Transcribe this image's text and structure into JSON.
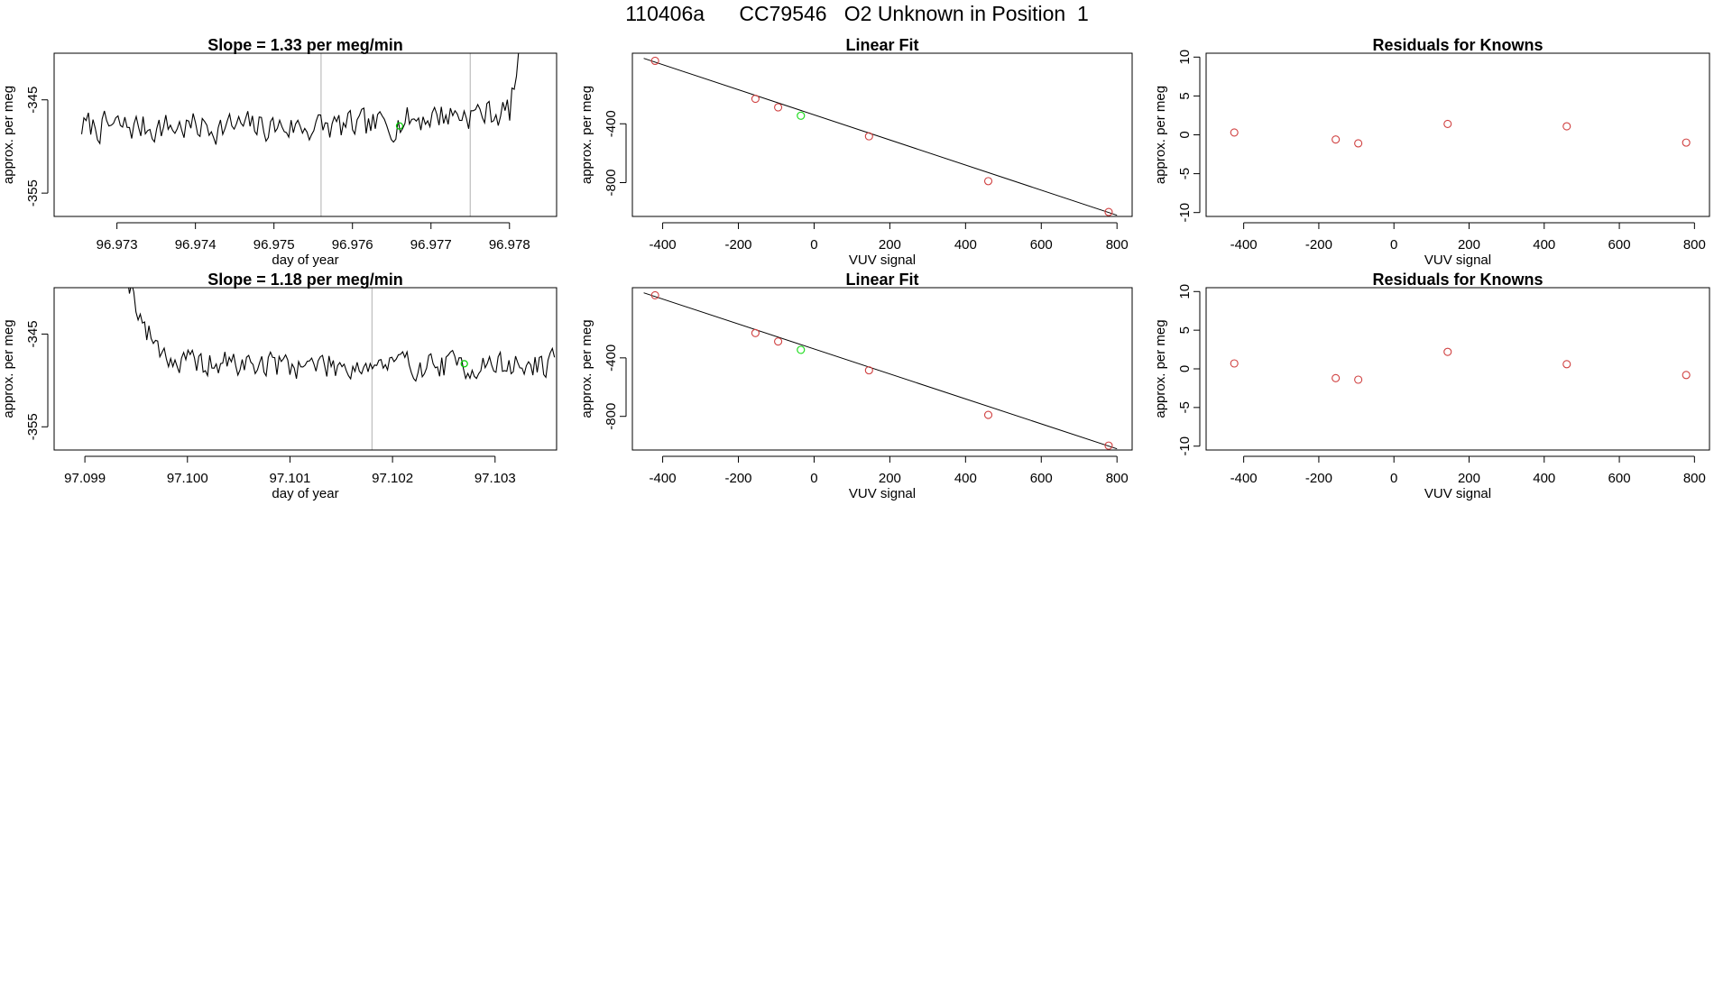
{
  "figure_title": "110406a      CC79546   O2 Unknown in Position  1",
  "chart_data": [
    {
      "id": "ts1",
      "type": "line",
      "title": "Slope =  1.33  per meg/min",
      "xlabel": "day of year",
      "ylabel": "approx. per meg",
      "xlim": [
        96.9722,
        96.9786
      ],
      "ylim": [
        -357.5,
        -340.0
      ],
      "xticks": [
        96.973,
        96.974,
        96.975,
        96.976,
        96.977,
        96.978
      ],
      "xtick_labels": [
        "96.973",
        "96.974",
        "96.975",
        "96.976",
        "96.977",
        "96.978"
      ],
      "yticks": [
        -345,
        -355
      ],
      "ytick_labels": [
        "-345",
        "-355"
      ],
      "vlines": [
        96.9756,
        96.9775
      ],
      "series_start": 96.97255,
      "series_end": 96.97835,
      "series_seed": 7,
      "series_base": -347.9,
      "series_noise": 1.5,
      "drift": [
        [
          96.9762,
          0.0
        ],
        [
          96.9771,
          1.3
        ],
        [
          96.978,
          1.6
        ],
        [
          96.97835,
          18.0
        ]
      ],
      "highlight": {
        "x": 96.9766,
        "y": -347.8,
        "color": "#00cc00"
      }
    },
    {
      "id": "ts2",
      "type": "line",
      "title": "Slope =  1.18  per meg/min",
      "xlabel": "day of year",
      "ylabel": "approx. per meg",
      "xlim": [
        97.0987,
        97.1036
      ],
      "ylim": [
        -357.5,
        -340.0
      ],
      "xticks": [
        97.099,
        97.1,
        97.101,
        97.102,
        97.103
      ],
      "xtick_labels": [
        "97.099",
        "97.100",
        "97.101",
        "97.102",
        "97.103"
      ],
      "yticks": [
        -345,
        -355
      ],
      "ytick_labels": [
        "-345",
        "-355"
      ],
      "vlines": [
        97.1018,
        97.1036
      ],
      "series_start": 97.09935,
      "series_end": 97.10358,
      "series_seed": 19,
      "series_base": -348.4,
      "series_noise": 1.4,
      "drift": [
        [
          97.09935,
          12.0
        ],
        [
          97.0996,
          3.5
        ],
        [
          97.0999,
          0.2
        ],
        [
          97.103,
          0.0
        ]
      ],
      "highlight": {
        "x": 97.1027,
        "y": -348.2,
        "color": "#00cc00"
      }
    },
    {
      "id": "fit1",
      "type": "scatter",
      "title": "Linear Fit",
      "xlabel": "VUV signal",
      "ylabel": "approx. per meg",
      "xlim": [
        -480,
        840
      ],
      "ylim": [
        -1030,
        80
      ],
      "xticks": [
        -400,
        -200,
        0,
        200,
        400,
        600,
        800
      ],
      "xtick_labels": [
        "-400",
        "-200",
        "0",
        "200",
        "400",
        "600",
        "800"
      ],
      "yticks": [
        -400,
        -800
      ],
      "ytick_labels": [
        "-400",
        "-800"
      ],
      "x": [
        -420,
        -155,
        -95,
        145,
        460,
        778
      ],
      "y": [
        28,
        -230,
        -288,
        -485,
        -790,
        -1000
      ],
      "line": [
        [
          -450,
          45
        ],
        [
          800,
          -1022
        ]
      ],
      "unknown": {
        "x": -35,
        "y": -345
      }
    },
    {
      "id": "res1",
      "type": "scatter",
      "title": "Residuals for Knowns",
      "xlabel": "VUV signal",
      "ylabel": "approx. per meg",
      "xlim": [
        -500,
        840
      ],
      "ylim": [
        -10.5,
        10.5
      ],
      "xticks": [
        -400,
        -200,
        0,
        200,
        400,
        600,
        800
      ],
      "xtick_labels": [
        "-400",
        "-200",
        "0",
        "200",
        "400",
        "600",
        "800"
      ],
      "yticks": [
        10,
        5,
        0,
        -5,
        -10
      ],
      "ytick_labels": [
        "10",
        "5",
        "0",
        "-5",
        "-10"
      ],
      "x": [
        -425,
        -155,
        -95,
        143,
        460,
        778
      ],
      "y": [
        0.3,
        -0.6,
        -1.1,
        1.4,
        1.1,
        -1.0
      ]
    },
    {
      "id": "fit2",
      "type": "scatter",
      "title": "Linear Fit",
      "xlabel": "VUV signal",
      "ylabel": "approx. per meg",
      "xlim": [
        -480,
        840
      ],
      "ylim": [
        -1030,
        80
      ],
      "xticks": [
        -400,
        -200,
        0,
        200,
        400,
        600,
        800
      ],
      "xtick_labels": [
        "-400",
        "-200",
        "0",
        "200",
        "400",
        "600",
        "800"
      ],
      "yticks": [
        -400,
        -800
      ],
      "ytick_labels": [
        "-400",
        "-800"
      ],
      "x": [
        -420,
        -155,
        -95,
        145,
        460,
        778
      ],
      "y": [
        28,
        -230,
        -288,
        -485,
        -790,
        -1000
      ],
      "line": [
        [
          -450,
          45
        ],
        [
          800,
          -1022
        ]
      ],
      "unknown": {
        "x": -35,
        "y": -345
      }
    },
    {
      "id": "res2",
      "type": "scatter",
      "title": "Residuals for Knowns",
      "xlabel": "VUV signal",
      "ylabel": "approx. per meg",
      "xlim": [
        -500,
        840
      ],
      "ylim": [
        -10.5,
        10.5
      ],
      "xticks": [
        -400,
        -200,
        0,
        200,
        400,
        600,
        800
      ],
      "xtick_labels": [
        "-400",
        "-200",
        "0",
        "200",
        "400",
        "600",
        "800"
      ],
      "yticks": [
        10,
        5,
        0,
        -5,
        -10
      ],
      "ytick_labels": [
        "10",
        "5",
        "0",
        "-5",
        "-10"
      ],
      "x": [
        -425,
        -155,
        -95,
        143,
        460,
        778
      ],
      "y": [
        0.7,
        -1.2,
        -1.4,
        2.2,
        0.6,
        -0.8
      ]
    }
  ]
}
